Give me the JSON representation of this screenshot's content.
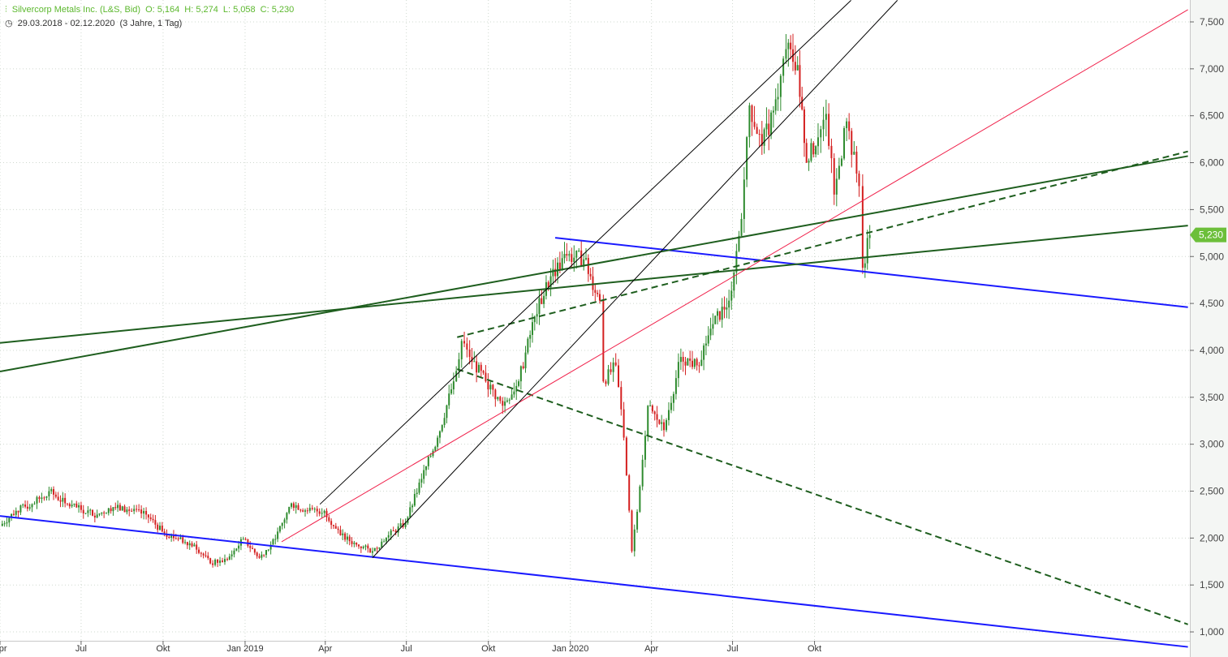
{
  "header": {
    "instrument": "Silvercorp Metals Inc. (L&S, Bid)",
    "open": "O: 5,164",
    "high": "H: 5,274",
    "low": "L: 5,058",
    "close": "C: 5,230",
    "range": "29.03.2018 - 02.12.2020",
    "duration": "(3 Jahre, 1 Tag)",
    "icons": {
      "instrument": "candlestick-icon",
      "range": "clock-icon"
    }
  },
  "chart_data": {
    "type": "candlestick",
    "title": "Silvercorp Metals Inc. (L&S, Bid)",
    "ylim": [
      850,
      7650
    ],
    "y_ticks": [
      1000,
      1500,
      2000,
      2500,
      3000,
      3500,
      4000,
      4500,
      5000,
      5500,
      6000,
      6500,
      7000,
      7500
    ],
    "y_tick_labels": [
      "1,000",
      "1,500",
      "2,000",
      "2,500",
      "3,000",
      "3,500",
      "4,000",
      "4,500",
      "5,000",
      "5,500",
      "6,000",
      "6,500",
      "7,000",
      "7,500"
    ],
    "x_ticks": [
      {
        "date": "2018-04-01",
        "label": "Apr"
      },
      {
        "date": "2018-07-01",
        "label": "Jul"
      },
      {
        "date": "2018-10-01",
        "label": "Okt"
      },
      {
        "date": "2019-01-01",
        "label": "Jan 2019"
      },
      {
        "date": "2019-04-01",
        "label": "Apr"
      },
      {
        "date": "2019-07-01",
        "label": "Jul"
      },
      {
        "date": "2019-10-01",
        "label": "Okt"
      },
      {
        "date": "2020-01-01",
        "label": "Jan 2020"
      },
      {
        "date": "2020-04-01",
        "label": "Apr"
      },
      {
        "date": "2020-07-01",
        "label": "Jul"
      },
      {
        "date": "2020-10-01",
        "label": "Okt"
      }
    ],
    "grid": true,
    "last_price": "5,230",
    "colors": {
      "up": "#2e8b2e",
      "down": "#d42020",
      "price_tag": "#6cbf3a",
      "grid": "#cfd8cf"
    },
    "prices": [
      [
        "2018-04-01",
        2130
      ],
      [
        "2018-04-19",
        2290
      ],
      [
        "2018-05-07",
        2360
      ],
      [
        "2018-05-26",
        2500
      ],
      [
        "2018-06-13",
        2370
      ],
      [
        "2018-07-01",
        2300
      ],
      [
        "2018-07-19",
        2250
      ],
      [
        "2018-08-06",
        2330
      ],
      [
        "2018-08-24",
        2290
      ],
      [
        "2018-09-12",
        2250
      ],
      [
        "2018-09-30",
        2070
      ],
      [
        "2018-10-18",
        1990
      ],
      [
        "2018-11-05",
        1930
      ],
      [
        "2018-11-23",
        1730
      ],
      [
        "2018-12-12",
        1770
      ],
      [
        "2018-12-30",
        1990
      ],
      [
        "2019-01-17",
        1790
      ],
      [
        "2019-02-04",
        1990
      ],
      [
        "2019-02-22",
        2370
      ],
      [
        "2019-03-12",
        2290
      ],
      [
        "2019-03-31",
        2290
      ],
      [
        "2019-04-18",
        2030
      ],
      [
        "2019-05-06",
        1930
      ],
      [
        "2019-05-24",
        1860
      ],
      [
        "2019-06-11",
        2030
      ],
      [
        "2019-06-30",
        2160
      ],
      [
        "2019-07-18",
        2630
      ],
      [
        "2019-08-05",
        3070
      ],
      [
        "2019-08-23",
        3670
      ],
      [
        "2019-09-01",
        4100
      ],
      [
        "2019-09-10",
        3930
      ],
      [
        "2019-09-28",
        3670
      ],
      [
        "2019-10-17",
        3410
      ],
      [
        "2019-11-04",
        3670
      ],
      [
        "2019-11-22",
        4360
      ],
      [
        "2019-12-10",
        4790
      ],
      [
        "2019-12-28",
        5010
      ],
      [
        "2020-01-16",
        4970
      ],
      [
        "2020-02-03",
        4530
      ],
      [
        "2020-02-07",
        3670
      ],
      [
        "2020-02-21",
        3840
      ],
      [
        "2020-03-01",
        3070
      ],
      [
        "2020-03-10",
        1860
      ],
      [
        "2020-03-19",
        2550
      ],
      [
        "2020-03-28",
        3410
      ],
      [
        "2020-04-15",
        3150
      ],
      [
        "2020-05-04",
        3930
      ],
      [
        "2020-05-22",
        3840
      ],
      [
        "2020-06-09",
        4280
      ],
      [
        "2020-06-27",
        4530
      ],
      [
        "2020-07-11",
        5400
      ],
      [
        "2020-07-20",
        6610
      ],
      [
        "2020-08-03",
        6180
      ],
      [
        "2020-08-21",
        6700
      ],
      [
        "2020-08-30",
        7210
      ],
      [
        "2020-09-12",
        7040
      ],
      [
        "2020-09-22",
        6000
      ],
      [
        "2020-10-05",
        6270
      ],
      [
        "2020-10-14",
        6520
      ],
      [
        "2020-10-23",
        5660
      ],
      [
        "2020-11-06",
        6440
      ],
      [
        "2020-11-20",
        5750
      ],
      [
        "2020-11-24",
        4880
      ],
      [
        "2020-12-02",
        5230
      ]
    ],
    "trendlines": [
      {
        "color": "#1a1aff",
        "style": "solid",
        "width": 2,
        "from": [
          "2018-04-01",
          2235
        ],
        "to": [
          "2021-11-24",
          840
        ]
      },
      {
        "color": "#1a1aff",
        "style": "solid",
        "width": 2,
        "from": [
          "2019-12-15",
          5200
        ],
        "to": [
          "2021-11-24",
          4460
        ]
      },
      {
        "color": "#1e5e1e",
        "style": "solid",
        "width": 2,
        "from": [
          "2018-04-01",
          4080
        ],
        "to": [
          "2021-11-24",
          5330
        ]
      },
      {
        "color": "#1e5e1e",
        "style": "solid",
        "width": 2,
        "from": [
          "2018-04-01",
          3775
        ],
        "to": [
          "2021-11-24",
          6070
        ]
      },
      {
        "color": "#1e5e1e",
        "style": "dashed",
        "width": 2,
        "from": [
          "2019-08-27",
          4140
        ],
        "to": [
          "2021-11-24",
          6120
        ]
      },
      {
        "color": "#1e5e1e",
        "style": "dashed",
        "width": 2,
        "from": [
          "2019-08-27",
          3800
        ],
        "to": [
          "2021-11-24",
          1080
        ]
      },
      {
        "color": "#f0204a",
        "style": "solid",
        "width": 1,
        "from": [
          "2019-02-11",
          1960
        ],
        "to": [
          "2021-11-24",
          7630
        ]
      },
      {
        "color": "#000000",
        "style": "solid",
        "width": 1,
        "from": [
          "2019-03-26",
          2360
        ],
        "to": [
          "2020-11-11",
          7730
        ]
      },
      {
        "color": "#000000",
        "style": "solid",
        "width": 1,
        "from": [
          "2019-05-24",
          1790
        ],
        "to": [
          "2021-01-02",
          7730
        ]
      }
    ]
  }
}
